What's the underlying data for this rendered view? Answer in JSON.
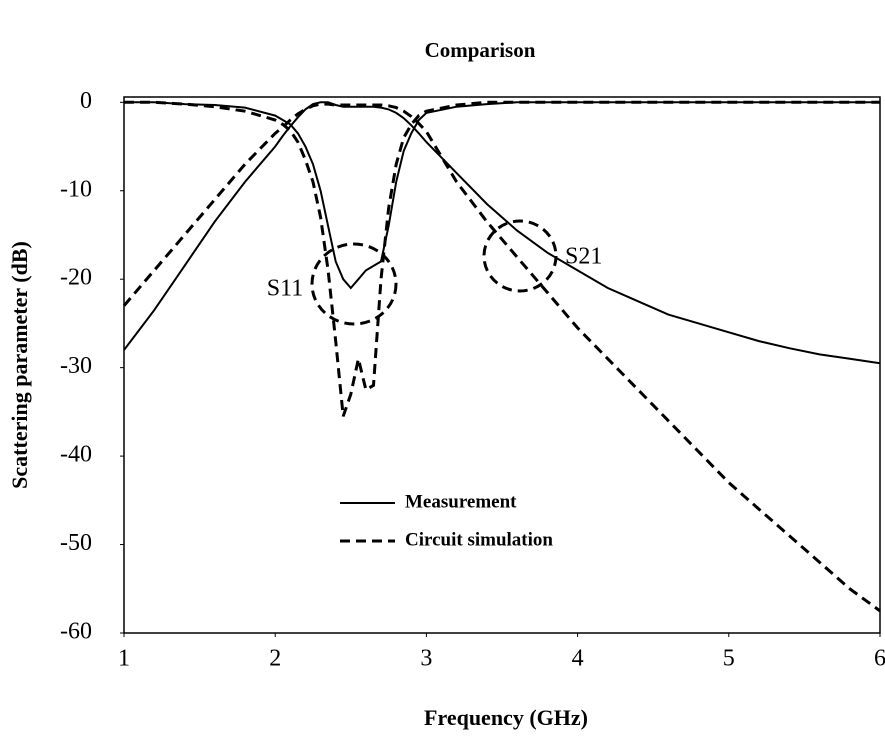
{
  "chart_data": {
    "type": "line",
    "title": "Comparison",
    "x_label": "Frequency (GHz)",
    "y_label": "Scattering parameter (dB)",
    "x": [
      1,
      1.2,
      1.4,
      1.6,
      1.8,
      2.0,
      2.05,
      2.1,
      2.15,
      2.2,
      2.25,
      2.3,
      2.35,
      2.4,
      2.45,
      2.5,
      2.55,
      2.6,
      2.65,
      2.7,
      2.75,
      2.8,
      2.85,
      2.9,
      2.95,
      3.0,
      3.2,
      3.4,
      3.6,
      3.8,
      4.0,
      4.2,
      4.4,
      4.6,
      4.8,
      5.0,
      5.2,
      5.4,
      5.6,
      5.8,
      6.0
    ],
    "series": [
      {
        "name": "Measurement",
        "color": "#000000",
        "dash": false,
        "values": [
          [
            -28,
            -23.5,
            -18.5,
            -13.5,
            -9,
            -5,
            -3.8,
            -2.7,
            -1.7,
            -0.8,
            -0.2,
            0,
            0,
            -0.3,
            -0.5,
            -0.5,
            -0.5,
            -0.5,
            -0.5,
            -0.6,
            -0.8,
            -1.2,
            -1.8,
            -2.6,
            -3.5,
            -4.5,
            -8,
            -11.5,
            -14.5,
            -17,
            -19,
            -21,
            -22.5,
            -24,
            -25,
            -26,
            -27,
            -27.8,
            -28.5,
            -29,
            -29.5
          ],
          [
            0,
            0,
            -0.2,
            -0.3,
            -0.6,
            -1.5,
            -2,
            -2.5,
            -3.5,
            -5,
            -7,
            -10,
            -14,
            -18,
            -20,
            -21,
            -20,
            -19,
            -18.5,
            -18,
            -14,
            -9,
            -5.5,
            -3.5,
            -2,
            -1.2,
            -0.5,
            -0.2,
            0,
            0,
            0,
            0,
            0,
            0,
            0,
            0,
            0,
            0,
            0,
            0,
            0
          ]
        ]
      },
      {
        "name": "Circuit simulation",
        "color": "#000000",
        "dash": true,
        "values": [
          [
            -23,
            -19,
            -15,
            -11,
            -7,
            -3.5,
            -2.8,
            -2,
            -1.3,
            -0.8,
            -0.4,
            -0.2,
            -0.2,
            -0.3,
            -0.3,
            -0.3,
            -0.3,
            -0.3,
            -0.3,
            -0.3,
            -0.4,
            -0.6,
            -1,
            -1.6,
            -2.4,
            -3.3,
            -9,
            -13.5,
            -17.5,
            -21.5,
            -25.5,
            -29,
            -32.5,
            -36,
            -39.5,
            -43,
            -46,
            -49,
            -52,
            -55,
            -57.5
          ],
          [
            0,
            0,
            -0.2,
            -0.5,
            -1,
            -2,
            -2.5,
            -3.2,
            -4.5,
            -6.5,
            -9,
            -13,
            -19,
            -27,
            -35.5,
            -33,
            -29,
            -32.5,
            -32,
            -20,
            -12,
            -7,
            -4,
            -2.5,
            -1.5,
            -1,
            -0.3,
            0,
            0,
            0,
            0,
            0,
            0,
            0,
            0,
            0,
            0,
            0,
            0,
            0,
            0
          ]
        ]
      }
    ],
    "annotations": [
      "S11",
      "S21"
    ],
    "xlim": [
      1,
      6
    ],
    "ylim": [
      -60,
      0.6
    ],
    "xticks": [
      1,
      2,
      3,
      4,
      5,
      6
    ],
    "yticks": [
      0,
      -10,
      -20,
      -30,
      -40,
      -50,
      -60
    ]
  }
}
